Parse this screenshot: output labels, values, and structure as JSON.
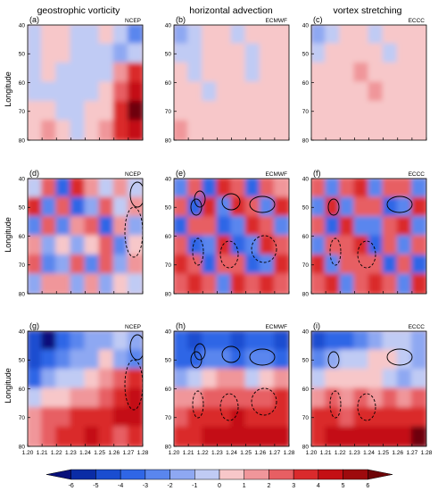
{
  "chart_data": {
    "type": "heatmap",
    "column_titles": [
      "geostrophic vorticity",
      "horizontal advection",
      "vortex stretching"
    ],
    "ylabel": "Longitude",
    "y_ticks": [
      "40",
      "50",
      "60",
      "70",
      "80"
    ],
    "x_ticks": [
      "1.20",
      "1.21",
      "1.22",
      "1.23",
      "1.24",
      "1.25",
      "1.26",
      "1.27",
      "1.28"
    ],
    "ylim": [
      40,
      80
    ],
    "xlim": [
      1.2,
      1.28
    ],
    "colorbar": {
      "ticks": [
        "-6",
        "-5",
        "-4",
        "-3",
        "-2",
        "-1",
        "0",
        "1",
        "2",
        "3",
        "4",
        "5",
        "6"
      ],
      "colors": [
        "#08107a",
        "#0a2ca6",
        "#1a4dd0",
        "#2f66e6",
        "#5a86ee",
        "#8ea8f2",
        "#c0cbf4",
        "#f7c7c9",
        "#f0969a",
        "#e75f63",
        "#da2a2c",
        "#c40f14",
        "#9e0a0d",
        "#6e0508"
      ]
    },
    "panels": [
      {
        "letter": "(a)",
        "source": "NCEP",
        "field": "geostrophic vorticity",
        "grid": [
          [
            -1,
            1,
            1,
            -1,
            -1,
            1,
            -1,
            -3
          ],
          [
            -1,
            1,
            1,
            -1,
            -1,
            -1,
            -2,
            -1
          ],
          [
            -1,
            1,
            -1,
            -1,
            -1,
            -1,
            2,
            4
          ],
          [
            -1,
            -1,
            -1,
            -1,
            -1,
            1,
            3,
            5
          ],
          [
            1,
            1,
            -1,
            -1,
            1,
            1,
            4,
            6
          ],
          [
            1,
            2,
            1,
            -1,
            1,
            2,
            4,
            5
          ]
        ]
      },
      {
        "letter": "(d)",
        "source": "NCEP",
        "field": "horizontal advection",
        "grid": [
          [
            -1,
            3,
            -4,
            4,
            2,
            -1,
            2,
            -1
          ],
          [
            4,
            -3,
            3,
            -4,
            -2,
            3,
            -1,
            2
          ],
          [
            -3,
            3,
            -3,
            2,
            3,
            -4,
            2,
            -2
          ],
          [
            2,
            -2,
            1,
            -2,
            1,
            3,
            -3,
            1
          ],
          [
            3,
            -3,
            -2,
            3,
            -3,
            3,
            -2,
            2
          ],
          [
            -2,
            2,
            2,
            -2,
            2,
            -2,
            1,
            -1
          ]
        ]
      },
      {
        "letter": "(g)",
        "source": "NCEP",
        "field": "vortex stretching",
        "grid": [
          [
            -5,
            -6,
            -4,
            -3,
            -2,
            -2,
            -1,
            -2
          ],
          [
            -5,
            -4,
            -3,
            -2,
            -2,
            1,
            -2,
            -3
          ],
          [
            -4,
            -2,
            -1,
            -1,
            1,
            2,
            3,
            4
          ],
          [
            -1,
            1,
            1,
            2,
            2,
            3,
            4,
            5
          ],
          [
            2,
            3,
            3,
            4,
            4,
            4,
            5,
            5
          ],
          [
            2,
            3,
            4,
            4,
            5,
            4,
            3,
            4
          ]
        ]
      },
      {
        "letter": "(b)",
        "source": "ECMWF",
        "field": "geostrophic vorticity",
        "grid": [
          [
            -2,
            -1,
            1,
            1,
            -1,
            1,
            1,
            1
          ],
          [
            -1,
            -1,
            1,
            1,
            1,
            -1,
            1,
            1
          ],
          [
            1,
            -1,
            1,
            1,
            1,
            -1,
            1,
            1
          ],
          [
            1,
            1,
            -1,
            1,
            1,
            1,
            1,
            1
          ],
          [
            1,
            1,
            1,
            1,
            1,
            1,
            1,
            1
          ],
          [
            2,
            1,
            1,
            1,
            1,
            1,
            1,
            1
          ]
        ]
      },
      {
        "letter": "(e)",
        "source": "ECMWF",
        "field": "horizontal advection",
        "grid": [
          [
            -3,
            3,
            -4,
            4,
            3,
            -4,
            3,
            2
          ],
          [
            3,
            -4,
            4,
            -3,
            4,
            3,
            -3,
            4
          ],
          [
            -4,
            3,
            3,
            -4,
            -3,
            4,
            3,
            -3
          ],
          [
            3,
            -4,
            -3,
            4,
            -4,
            -3,
            4,
            3
          ],
          [
            4,
            3,
            -4,
            3,
            3,
            -4,
            -3,
            4
          ],
          [
            3,
            4,
            3,
            -3,
            4,
            3,
            4,
            3
          ]
        ]
      },
      {
        "letter": "(h)",
        "source": "ECMWF",
        "field": "vortex stretching",
        "grid": [
          [
            -4,
            -5,
            -4,
            -4,
            -5,
            -4,
            -4,
            -5
          ],
          [
            -4,
            -4,
            -3,
            -3,
            -4,
            -3,
            -3,
            -4
          ],
          [
            -2,
            -1,
            1,
            2,
            2,
            -1,
            1,
            2
          ],
          [
            2,
            2,
            3,
            3,
            3,
            3,
            3,
            4
          ],
          [
            3,
            4,
            4,
            4,
            5,
            4,
            4,
            4
          ],
          [
            4,
            4,
            5,
            5,
            5,
            5,
            5,
            5
          ]
        ]
      },
      {
        "letter": "(c)",
        "source": "ECCC",
        "field": "geostrophic vorticity",
        "grid": [
          [
            -2,
            -1,
            1,
            1,
            -1,
            1,
            1,
            1
          ],
          [
            -1,
            1,
            1,
            1,
            1,
            -1,
            1,
            1
          ],
          [
            1,
            1,
            1,
            2,
            1,
            1,
            1,
            1
          ],
          [
            1,
            1,
            1,
            1,
            2,
            1,
            1,
            1
          ],
          [
            1,
            1,
            1,
            1,
            1,
            1,
            1,
            1
          ],
          [
            1,
            1,
            1,
            1,
            1,
            1,
            1,
            1
          ]
        ]
      },
      {
        "letter": "(f)",
        "source": "ECCC",
        "field": "horizontal advection",
        "grid": [
          [
            3,
            -3,
            3,
            4,
            -3,
            3,
            3,
            -3
          ],
          [
            -3,
            4,
            -3,
            3,
            3,
            -4,
            -3,
            4
          ],
          [
            3,
            -4,
            4,
            -3,
            -3,
            3,
            4,
            -3
          ],
          [
            -3,
            3,
            3,
            4,
            -4,
            3,
            -3,
            3
          ],
          [
            4,
            -3,
            3,
            3,
            3,
            -4,
            3,
            -4
          ],
          [
            3,
            4,
            -3,
            3,
            4,
            3,
            -3,
            4
          ]
        ]
      },
      {
        "letter": "(i)",
        "source": "ECCC",
        "field": "vortex stretching",
        "grid": [
          [
            -5,
            -4,
            -4,
            -3,
            -2,
            -1,
            -1,
            -2
          ],
          [
            -3,
            -2,
            -1,
            -1,
            1,
            1,
            -1,
            -2
          ],
          [
            -1,
            1,
            1,
            1,
            1,
            -1,
            -2,
            -1
          ],
          [
            2,
            3,
            2,
            3,
            2,
            3,
            2,
            3
          ],
          [
            4,
            4,
            3,
            4,
            4,
            4,
            4,
            4
          ],
          [
            4,
            5,
            5,
            5,
            5,
            5,
            5,
            6
          ]
        ]
      }
    ]
  }
}
